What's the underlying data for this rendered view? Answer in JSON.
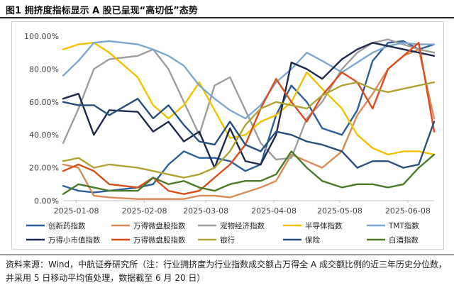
{
  "figure": {
    "title": "图1  拥挤度指标显示 A 股已呈现“高切低”态势",
    "source": "资料来源：Wind，中航证券研究所（注：行业拥挤度为行业指数成交额占万得全 A 成交额比例的近三年历史分位数，并采用 5 日移动平均值处理，数据截至 6 月 20 日）"
  },
  "chart_data": {
    "type": "line",
    "title": "",
    "xlabel": "",
    "ylabel": "",
    "ylim": [
      0,
      100
    ],
    "yticks": [
      "0.00%",
      "20.00%",
      "40.00%",
      "60.00%",
      "80.00%",
      "100.00%"
    ],
    "xrange": [
      "2025-01-02",
      "2025-06-20"
    ],
    "xticks": [
      "2025-01-08",
      "2025-02-08",
      "2025-03-08",
      "2025-04-08",
      "2025-05-08",
      "2025-06-08"
    ],
    "grid": false,
    "legend_position": "bottom",
    "series": [
      {
        "name": "创新药指数",
        "color": "#2e5f9a",
        "x": [
          "2025-01-02",
          "2025-01-09",
          "2025-01-16",
          "2025-01-23",
          "2025-02-05",
          "2025-02-12",
          "2025-02-19",
          "2025-02-26",
          "2025-03-05",
          "2025-03-12",
          "2025-03-19",
          "2025-03-26",
          "2025-04-02",
          "2025-04-09",
          "2025-04-16",
          "2025-04-23",
          "2025-04-30",
          "2025-05-09",
          "2025-05-16",
          "2025-05-23",
          "2025-05-30",
          "2025-06-06",
          "2025-06-13",
          "2025-06-20"
        ],
        "y": [
          9,
          6,
          5,
          6,
          8,
          10,
          22,
          30,
          26,
          26,
          24,
          18,
          22,
          52,
          70,
          60,
          44,
          40,
          55,
          85,
          96,
          97,
          92,
          95
        ]
      },
      {
        "name": "万得微盘股指数",
        "color": "#d98c5a",
        "x": [
          "2025-01-02",
          "2025-01-09",
          "2025-01-16",
          "2025-01-23",
          "2025-02-05",
          "2025-02-12",
          "2025-02-19",
          "2025-02-26",
          "2025-03-05",
          "2025-03-12",
          "2025-03-19",
          "2025-03-26",
          "2025-04-02",
          "2025-04-09",
          "2025-04-16",
          "2025-04-23",
          "2025-04-30",
          "2025-05-09",
          "2025-05-16",
          "2025-05-23",
          "2025-05-30",
          "2025-06-06",
          "2025-06-13",
          "2025-06-20"
        ],
        "y": [
          22,
          20,
          3,
          2,
          1,
          1,
          1,
          1,
          3,
          3,
          2,
          5,
          8,
          12,
          28,
          24,
          20,
          30,
          52,
          65,
          80,
          88,
          92,
          50
        ]
      },
      {
        "name": "宠物经济指数",
        "color": "#9e9e9e",
        "x": [
          "2025-01-02",
          "2025-01-09",
          "2025-01-16",
          "2025-01-23",
          "2025-02-05",
          "2025-02-12",
          "2025-02-19",
          "2025-02-26",
          "2025-03-05",
          "2025-03-12",
          "2025-03-19",
          "2025-03-26",
          "2025-04-02",
          "2025-04-09",
          "2025-04-16",
          "2025-04-23",
          "2025-04-30",
          "2025-05-09",
          "2025-05-16",
          "2025-05-23",
          "2025-05-30",
          "2025-06-06",
          "2025-06-13",
          "2025-06-20"
        ],
        "y": [
          35,
          56,
          80,
          86,
          88,
          92,
          80,
          60,
          40,
          70,
          75,
          55,
          35,
          25,
          26,
          50,
          60,
          80,
          90,
          96,
          98,
          95,
          92,
          90
        ]
      },
      {
        "name": "半导体指数",
        "color": "#f2c200",
        "x": [
          "2025-01-02",
          "2025-01-09",
          "2025-01-16",
          "2025-01-23",
          "2025-02-05",
          "2025-02-12",
          "2025-02-19",
          "2025-02-26",
          "2025-03-05",
          "2025-03-12",
          "2025-03-19",
          "2025-03-26",
          "2025-04-02",
          "2025-04-09",
          "2025-04-16",
          "2025-04-23",
          "2025-04-30",
          "2025-05-09",
          "2025-05-16",
          "2025-05-23",
          "2025-05-30",
          "2025-06-06",
          "2025-06-13",
          "2025-06-20"
        ],
        "y": [
          92,
          95,
          96,
          90,
          75,
          58,
          50,
          58,
          72,
          55,
          38,
          40,
          48,
          52,
          60,
          78,
          68,
          56,
          40,
          32,
          28,
          30,
          30,
          28
        ]
      },
      {
        "name": "TMT指数",
        "color": "#7fa8d1",
        "x": [
          "2025-01-02",
          "2025-01-09",
          "2025-01-16",
          "2025-01-23",
          "2025-02-05",
          "2025-02-12",
          "2025-02-19",
          "2025-02-26",
          "2025-03-05",
          "2025-03-12",
          "2025-03-19",
          "2025-03-26",
          "2025-04-02",
          "2025-04-09",
          "2025-04-16",
          "2025-04-23",
          "2025-04-30",
          "2025-05-09",
          "2025-05-16",
          "2025-05-23",
          "2025-05-30",
          "2025-06-06",
          "2025-06-13",
          "2025-06-20"
        ],
        "y": [
          76,
          85,
          96,
          97,
          95,
          92,
          88,
          82,
          70,
          62,
          55,
          50,
          58,
          72,
          80,
          90,
          85,
          78,
          84,
          90,
          94,
          96,
          95,
          95
        ]
      },
      {
        "name": "万得小市值指数",
        "color": "#1f2a4d",
        "x": [
          "2025-01-02",
          "2025-01-09",
          "2025-01-16",
          "2025-01-23",
          "2025-02-05",
          "2025-02-12",
          "2025-02-19",
          "2025-02-26",
          "2025-03-05",
          "2025-03-12",
          "2025-03-19",
          "2025-03-26",
          "2025-04-02",
          "2025-04-09",
          "2025-04-16",
          "2025-04-23",
          "2025-04-30",
          "2025-05-09",
          "2025-05-16",
          "2025-05-23",
          "2025-05-30",
          "2025-06-06",
          "2025-06-13",
          "2025-06-20"
        ],
        "y": [
          62,
          65,
          40,
          55,
          54,
          42,
          48,
          36,
          42,
          20,
          44,
          24,
          22,
          40,
          84,
          80,
          74,
          86,
          92,
          96,
          94,
          92,
          90,
          88
        ]
      },
      {
        "name": "万得微盘股指数",
        "color": "#d94e1f",
        "x": [
          "2025-01-02",
          "2025-01-09",
          "2025-01-16",
          "2025-01-23",
          "2025-02-05",
          "2025-02-12",
          "2025-02-19",
          "2025-02-26",
          "2025-03-05",
          "2025-03-12",
          "2025-03-19",
          "2025-03-26",
          "2025-04-02",
          "2025-04-09",
          "2025-04-16",
          "2025-04-23",
          "2025-04-30",
          "2025-05-09",
          "2025-05-16",
          "2025-05-23",
          "2025-05-30",
          "2025-06-06",
          "2025-06-13",
          "2025-06-20"
        ],
        "y": [
          18,
          22,
          18,
          10,
          8,
          14,
          6,
          4,
          6,
          14,
          22,
          34,
          56,
          74,
          60,
          48,
          64,
          78,
          72,
          56,
          80,
          88,
          96,
          42
        ]
      },
      {
        "name": "银行",
        "color": "#b0a336",
        "x": [
          "2025-01-02",
          "2025-01-09",
          "2025-01-16",
          "2025-01-23",
          "2025-02-05",
          "2025-02-12",
          "2025-02-19",
          "2025-02-26",
          "2025-03-05",
          "2025-03-12",
          "2025-03-19",
          "2025-03-26",
          "2025-04-02",
          "2025-04-09",
          "2025-04-16",
          "2025-04-23",
          "2025-04-30",
          "2025-05-09",
          "2025-05-16",
          "2025-05-23",
          "2025-05-30",
          "2025-06-06",
          "2025-06-13",
          "2025-06-20"
        ],
        "y": [
          24,
          26,
          20,
          22,
          20,
          18,
          16,
          14,
          16,
          20,
          30,
          46,
          56,
          60,
          58,
          56,
          64,
          70,
          72,
          68,
          66,
          68,
          70,
          72
        ]
      },
      {
        "name": "保险",
        "color": "#2a4f7c",
        "x": [
          "2025-01-02",
          "2025-01-09",
          "2025-01-16",
          "2025-01-23",
          "2025-02-05",
          "2025-02-12",
          "2025-02-19",
          "2025-02-26",
          "2025-03-05",
          "2025-03-12",
          "2025-03-19",
          "2025-03-26",
          "2025-04-02",
          "2025-04-09",
          "2025-04-16",
          "2025-04-23",
          "2025-04-30",
          "2025-05-09",
          "2025-05-16",
          "2025-05-23",
          "2025-05-30",
          "2025-06-06",
          "2025-06-13",
          "2025-06-20"
        ],
        "y": [
          60,
          58,
          58,
          52,
          62,
          50,
          58,
          46,
          36,
          34,
          48,
          34,
          30,
          42,
          40,
          36,
          34,
          30,
          20,
          24,
          24,
          20,
          22,
          48
        ]
      },
      {
        "name": "白酒指数",
        "color": "#4d7a2a",
        "x": [
          "2025-01-02",
          "2025-01-09",
          "2025-01-16",
          "2025-01-23",
          "2025-02-05",
          "2025-02-12",
          "2025-02-19",
          "2025-02-26",
          "2025-03-05",
          "2025-03-12",
          "2025-03-19",
          "2025-03-26",
          "2025-04-02",
          "2025-04-09",
          "2025-04-16",
          "2025-04-23",
          "2025-04-30",
          "2025-05-09",
          "2025-05-16",
          "2025-05-23",
          "2025-05-30",
          "2025-06-06",
          "2025-06-13",
          "2025-06-20"
        ],
        "y": [
          4,
          10,
          8,
          6,
          6,
          14,
          10,
          12,
          8,
          6,
          10,
          12,
          12,
          16,
          30,
          20,
          12,
          8,
          10,
          10,
          8,
          10,
          20,
          28
        ]
      }
    ]
  }
}
